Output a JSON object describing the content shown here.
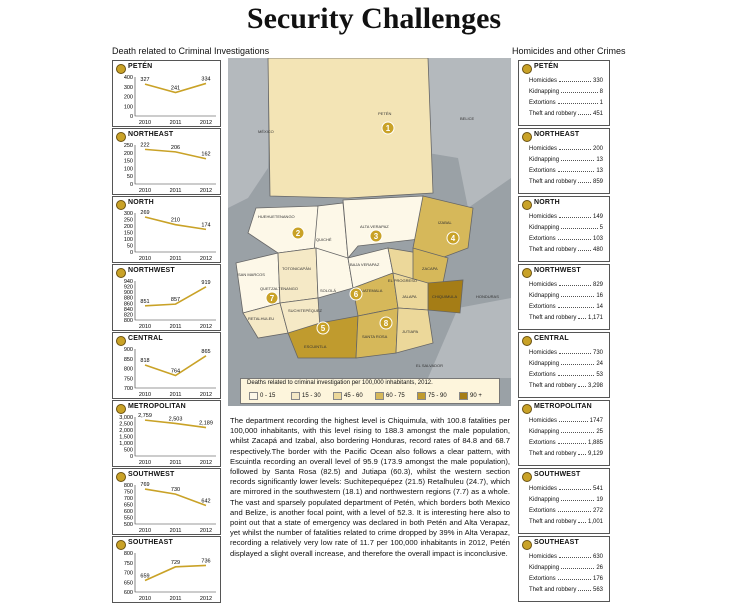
{
  "title": "Security Challenges",
  "left_header": "Death related to Criminal Investigations",
  "right_header": "Homicides and other Crimes",
  "colors": {
    "line": "#c9a227",
    "badge": "#c9a227",
    "lightest": "#fdf8e8",
    "light": "#f5e9c6",
    "mid": "#ecd89a",
    "dark": "#d6b85a",
    "darker": "#c09b2e",
    "darkest": "#a57d16",
    "sea": "#9aa1a6",
    "neighbor": "#b4b9bd"
  },
  "chart_data": [
    {
      "type": "line",
      "title": "PETÉN",
      "categories": [
        "2010",
        "2011",
        "2012"
      ],
      "values": [
        327,
        241,
        334
      ],
      "data_labels": [
        "327",
        "241",
        "334"
      ],
      "yticks": [
        "400",
        "300",
        "200",
        "100",
        "0"
      ],
      "ylim": [
        0,
        400
      ]
    },
    {
      "type": "line",
      "title": "NORTHEAST",
      "categories": [
        "2010",
        "2011",
        "2012"
      ],
      "values": [
        222,
        206,
        162
      ],
      "data_labels": [
        "222",
        "206",
        "162"
      ],
      "yticks": [
        "250",
        "200",
        "150",
        "100",
        "50",
        "0"
      ],
      "ylim": [
        0,
        250
      ]
    },
    {
      "type": "line",
      "title": "NORTH",
      "categories": [
        "2010",
        "2011",
        "2012"
      ],
      "values": [
        269,
        210,
        174
      ],
      "data_labels": [
        "269",
        "210",
        "174"
      ],
      "yticks": [
        "300",
        "250",
        "200",
        "150",
        "100",
        "50",
        "0"
      ],
      "ylim": [
        0,
        300
      ]
    },
    {
      "type": "line",
      "title": "NORTHWEST",
      "categories": [
        "2010",
        "2011",
        "2012"
      ],
      "values": [
        851,
        857,
        919
      ],
      "data_labels": [
        "851",
        "857",
        "919"
      ],
      "yticks": [
        "940",
        "920",
        "900",
        "880",
        "860",
        "840",
        "820",
        "800"
      ],
      "ylim": [
        800,
        940
      ]
    },
    {
      "type": "line",
      "title": "CENTRAL",
      "categories": [
        "2010",
        "2011",
        "2012"
      ],
      "values": [
        818,
        764,
        865
      ],
      "data_labels": [
        "818",
        "764",
        "865"
      ],
      "yticks": [
        "900",
        "850",
        "800",
        "750",
        "700"
      ],
      "ylim": [
        700,
        900
      ]
    },
    {
      "type": "line",
      "title": "METROPOLITAN",
      "categories": [
        "2010",
        "2011",
        "2012"
      ],
      "values": [
        2759,
        2503,
        2189
      ],
      "data_labels": [
        "2,759",
        "2,503",
        "2,189"
      ],
      "yticks": [
        "3,000",
        "2,500",
        "2,000",
        "1,500",
        "1,000",
        "500",
        "0"
      ],
      "ylim": [
        0,
        3000
      ]
    },
    {
      "type": "line",
      "title": "SOUTHWEST",
      "categories": [
        "2010",
        "2011",
        "2012"
      ],
      "values": [
        769,
        730,
        642
      ],
      "data_labels": [
        "769",
        "730",
        "642"
      ],
      "yticks": [
        "800",
        "750",
        "700",
        "650",
        "600",
        "550",
        "500"
      ],
      "ylim": [
        500,
        800
      ]
    },
    {
      "type": "line",
      "title": "SOUTHEAST",
      "categories": [
        "2010",
        "2011",
        "2012"
      ],
      "values": [
        659,
        729,
        736
      ],
      "data_labels": [
        "659",
        "729",
        "736"
      ],
      "yticks": [
        "800",
        "750",
        "700",
        "650",
        "600"
      ],
      "ylim": [
        600,
        800
      ]
    }
  ],
  "crimes": [
    {
      "region": "PETÉN",
      "rows": [
        [
          "Homicides",
          "330"
        ],
        [
          "Kidnapping",
          "8"
        ],
        [
          "Extortions",
          "1"
        ],
        [
          "Theft and robbery",
          "451"
        ]
      ]
    },
    {
      "region": "NORTHEAST",
      "rows": [
        [
          "Homicides",
          "200"
        ],
        [
          "Kidnapping",
          "13"
        ],
        [
          "Extortions",
          "13"
        ],
        [
          "Theft and robbery",
          "859"
        ]
      ]
    },
    {
      "region": "NORTH",
      "rows": [
        [
          "Homicides",
          "149"
        ],
        [
          "Kidnapping",
          "5"
        ],
        [
          "Extortions",
          "103"
        ],
        [
          "Theft and robbery",
          "480"
        ]
      ]
    },
    {
      "region": "NORTHWEST",
      "rows": [
        [
          "Homicides",
          "829"
        ],
        [
          "Kidnapping",
          "16"
        ],
        [
          "Extortions",
          "14"
        ],
        [
          "Theft and robbery",
          "1,171"
        ]
      ]
    },
    {
      "region": "CENTRAL",
      "rows": [
        [
          "Homicides",
          "730"
        ],
        [
          "Kidnapping",
          "24"
        ],
        [
          "Extortions",
          "53"
        ],
        [
          "Theft and robbery",
          "3,298"
        ]
      ]
    },
    {
      "region": "METROPOLITAN",
      "rows": [
        [
          "Homicides",
          "1747"
        ],
        [
          "Kidnapping",
          "25"
        ],
        [
          "Extortions",
          "1,885"
        ],
        [
          "Theft and robbery",
          "9,129"
        ]
      ]
    },
    {
      "region": "SOUTHWEST",
      "rows": [
        [
          "Homicides",
          "541"
        ],
        [
          "Kidnapping",
          "19"
        ],
        [
          "Extortions",
          "272"
        ],
        [
          "Theft and robbery",
          "1,001"
        ]
      ]
    },
    {
      "region": "SOUTHEAST",
      "rows": [
        [
          "Homicides",
          "630"
        ],
        [
          "Kidnapping",
          "26"
        ],
        [
          "Extortions",
          "176"
        ],
        [
          "Theft and robbery",
          "563"
        ]
      ]
    }
  ],
  "map": {
    "countries": {
      "mexico": "MÉXICO",
      "belize": "BELICE",
      "honduras": "HONDURAS",
      "el_salvador": "EL SALVADOR"
    },
    "departments": [
      "PETÉN",
      "IZABAL",
      "ALTA VERAPAZ",
      "QUICHÉ",
      "HUEHUETENANGO",
      "SAN MARCOS",
      "TOTONICAPÁN",
      "QUETZALTENANGO",
      "SOLOLÁ",
      "RETALHULEU",
      "SUCHITEPÉQUEZ",
      "ESCUINTLA",
      "SANTA ROSA",
      "JUTIAPA",
      "JALAPA",
      "CHIQUIMULA",
      "ZACAPA",
      "EL PROGRESO",
      "GUATEMALA",
      "BAJA VERAPAZ"
    ],
    "markers": [
      "1",
      "2",
      "3",
      "4",
      "5",
      "6",
      "7",
      "8"
    ]
  },
  "legend": {
    "title": "Deaths related to criminal investigation per 100,000 inhabitants, 2012.",
    "items": [
      "0 - 15",
      "15 - 30",
      "45 - 60",
      "60 - 75",
      "75 - 90",
      "90 +"
    ]
  },
  "body_text": "The department recording the highest level is Chiquimula, with 100.8 fatalities per 100,000 inhabitants, with this level rising to 188.3 amongst the male population, whilst Zacapá and Izabal, also bordering Honduras, record rates of 84.8 and 68.7 respectively.The border with the Pacific Ocean also follows a clear pattern, with Escuintla recording an overall level of 95.9 (173.9 amongst the male population), followed by Santa Rosa (82.5) and Jutiapa (60.3), whilst the western section records significantly lower levels: Suchitepequépez (21.5) Retalhuleu (24.7), which are mirrored in the southwestern (18.1) and northwestern regions (7.7) as a whole. The vast and sparsely populated department of Petén, which borders both Mexico and Belize, is another focal point, with a level of 52.3. It is interesting here also to point out that a state of emergency was declared in both Petén and Alta Verapaz, yet whilst the number of fatalities related to crime dropped by 39% in Alta Verapaz, recording a relatively very low rate of 11.7 per 100,000 inhabitants in 2012, Petén displayed a slight overall increase, and therefore the overall impact is inconclusive."
}
